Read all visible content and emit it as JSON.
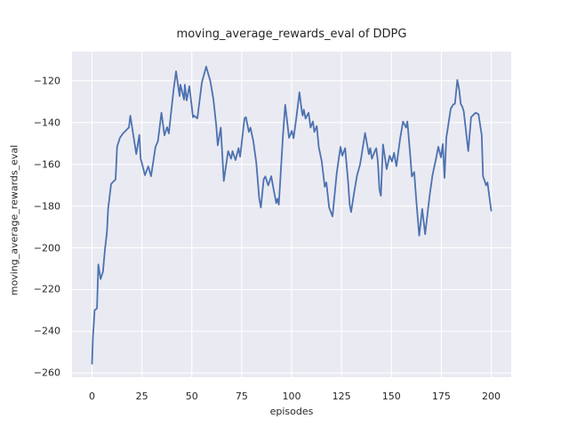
{
  "chart_data": {
    "type": "line",
    "title": "moving_average_rewards_eval of DDPG",
    "xlabel": "episodes",
    "ylabel": "moving_average_rewards_eval",
    "xlim": [
      -10,
      210
    ],
    "ylim": [
      -262,
      -106
    ],
    "xticks": [
      0,
      25,
      50,
      75,
      100,
      125,
      150,
      175,
      200
    ],
    "yticks": [
      -120,
      -140,
      -160,
      -180,
      -200,
      -220,
      -240,
      -260
    ],
    "grid": true,
    "legend": false,
    "style": {
      "figure_bg": "#FFFFFF",
      "axes_bg": "#EAEAF2",
      "grid_color": "#FFFFFF",
      "line_color": "#4C72B0",
      "text_color": "#262626",
      "line_width": 1.8,
      "grid_width": 1.1
    },
    "series": [
      {
        "name": "moving_average_rewards_eval",
        "color": "#4C72B0",
        "points": [
          [
            0,
            -255.5
          ],
          [
            0.5,
            -242
          ],
          [
            1,
            -235
          ],
          [
            1.3,
            -230
          ],
          [
            2.5,
            -229
          ],
          [
            3.2,
            -208
          ],
          [
            4.3,
            -215
          ],
          [
            5.5,
            -211.5
          ],
          [
            6.5,
            -201
          ],
          [
            7.5,
            -192.5
          ],
          [
            8.1,
            -181.4
          ],
          [
            9.6,
            -169.4
          ],
          [
            10.3,
            -168.7
          ],
          [
            11.8,
            -167.2
          ],
          [
            12.6,
            -151.6
          ],
          [
            14,
            -147.3
          ],
          [
            15.5,
            -145.2
          ],
          [
            17,
            -143.8
          ],
          [
            18.5,
            -142.3
          ],
          [
            19.2,
            -136.7
          ],
          [
            20.7,
            -145.9
          ],
          [
            22.2,
            -155.1
          ],
          [
            23.7,
            -145.9
          ],
          [
            24.4,
            -157.3
          ],
          [
            25.2,
            -160.1
          ],
          [
            26.5,
            -165.2
          ],
          [
            28.2,
            -161
          ],
          [
            29.6,
            -165.7
          ],
          [
            31.8,
            -151.6
          ],
          [
            33,
            -149
          ],
          [
            34.8,
            -135.3
          ],
          [
            36.3,
            -146.1
          ],
          [
            37.6,
            -142.2
          ],
          [
            38.5,
            -145.2
          ],
          [
            40.8,
            -124.8
          ],
          [
            42.1,
            -115.4
          ],
          [
            43.9,
            -127.3
          ],
          [
            44.3,
            -121.8
          ],
          [
            46.1,
            -129
          ],
          [
            46.5,
            -121.8
          ],
          [
            47.4,
            -129.4
          ],
          [
            48.8,
            -122.6
          ],
          [
            50.6,
            -137.5
          ],
          [
            51.1,
            -136.7
          ],
          [
            52.8,
            -138
          ],
          [
            55,
            -120.9
          ],
          [
            57.2,
            -113.2
          ],
          [
            59.3,
            -120.2
          ],
          [
            60.8,
            -128.7
          ],
          [
            62.3,
            -141.7
          ],
          [
            63,
            -150.9
          ],
          [
            64.5,
            -142.4
          ],
          [
            66,
            -168
          ],
          [
            68.2,
            -153.7
          ],
          [
            69.7,
            -157.3
          ],
          [
            70.4,
            -153.7
          ],
          [
            71.9,
            -158
          ],
          [
            73.4,
            -152.3
          ],
          [
            74.2,
            -156.4
          ],
          [
            76.4,
            -138
          ],
          [
            77.1,
            -137.4
          ],
          [
            78.6,
            -144.5
          ],
          [
            79.4,
            -142.4
          ],
          [
            80.8,
            -148.8
          ],
          [
            82.3,
            -159.4
          ],
          [
            83.8,
            -176.5
          ],
          [
            84.6,
            -180.7
          ],
          [
            86,
            -167.2
          ],
          [
            86.8,
            -165.8
          ],
          [
            88.3,
            -170.1
          ],
          [
            89.8,
            -165.7
          ],
          [
            91,
            -172.1
          ],
          [
            92.3,
            -178.6
          ],
          [
            92.9,
            -176.5
          ],
          [
            93.6,
            -179.3
          ],
          [
            95.7,
            -146
          ],
          [
            96.8,
            -131.5
          ],
          [
            98.7,
            -147.3
          ],
          [
            100.1,
            -144
          ],
          [
            101,
            -147.5
          ],
          [
            102.4,
            -137.4
          ],
          [
            103.9,
            -125.5
          ],
          [
            105.1,
            -134.6
          ],
          [
            105.5,
            -136.7
          ],
          [
            106.1,
            -133.8
          ],
          [
            107,
            -138.1
          ],
          [
            108.5,
            -135.3
          ],
          [
            109.5,
            -142.4
          ],
          [
            110.7,
            -139.5
          ],
          [
            111.4,
            -144.5
          ],
          [
            112.6,
            -141.7
          ],
          [
            113.6,
            -151.6
          ],
          [
            115.1,
            -158.7
          ],
          [
            116,
            -165.8
          ],
          [
            116.6,
            -170.8
          ],
          [
            117.4,
            -168.7
          ],
          [
            118.8,
            -180.7
          ],
          [
            120.5,
            -185
          ],
          [
            122.6,
            -164.4
          ],
          [
            123.5,
            -158
          ],
          [
            124.5,
            -151.6
          ],
          [
            125.4,
            -155.9
          ],
          [
            126.8,
            -152.3
          ],
          [
            128.3,
            -168
          ],
          [
            129.1,
            -179.3
          ],
          [
            129.8,
            -182.9
          ],
          [
            131.3,
            -173.6
          ],
          [
            132.8,
            -165.1
          ],
          [
            134.3,
            -160.1
          ],
          [
            135,
            -155.9
          ],
          [
            136.8,
            -145
          ],
          [
            138.7,
            -155.2
          ],
          [
            139.4,
            -152.3
          ],
          [
            140.2,
            -157.3
          ],
          [
            141.7,
            -153.7
          ],
          [
            142.4,
            -152.3
          ],
          [
            143.2,
            -158.7
          ],
          [
            144,
            -172.2
          ],
          [
            144.7,
            -175.1
          ],
          [
            145.8,
            -150.5
          ],
          [
            147.6,
            -162.3
          ],
          [
            149.1,
            -155.9
          ],
          [
            150.3,
            -158.7
          ],
          [
            151.3,
            -154.5
          ],
          [
            152.5,
            -160.9
          ],
          [
            154.3,
            -148.1
          ],
          [
            155.8,
            -139.5
          ],
          [
            157.3,
            -142.4
          ],
          [
            158,
            -139.5
          ],
          [
            159.5,
            -156.6
          ],
          [
            160.2,
            -165.8
          ],
          [
            161.4,
            -163.7
          ],
          [
            162.4,
            -176.5
          ],
          [
            163.9,
            -194.2
          ],
          [
            165.4,
            -181.4
          ],
          [
            166.9,
            -193.5
          ],
          [
            169.1,
            -175.1
          ],
          [
            170.6,
            -165.1
          ],
          [
            172.2,
            -158
          ],
          [
            173.5,
            -151.6
          ],
          [
            174.8,
            -156.7
          ],
          [
            175.7,
            -150.3
          ],
          [
            176.6,
            -166.5
          ],
          [
            177.5,
            -147.4
          ],
          [
            179.7,
            -133.3
          ],
          [
            181.1,
            -131.2
          ],
          [
            181.8,
            -131
          ],
          [
            183,
            -119.6
          ],
          [
            184,
            -124.6
          ],
          [
            184.7,
            -131
          ],
          [
            185.5,
            -132.4
          ],
          [
            186.2,
            -134.6
          ],
          [
            188.5,
            -153.7
          ],
          [
            189.9,
            -137.4
          ],
          [
            192.2,
            -135.3
          ],
          [
            193.6,
            -136
          ],
          [
            195.2,
            -146
          ],
          [
            195.9,
            -165.8
          ],
          [
            196.7,
            -167.9
          ],
          [
            197.4,
            -170.1
          ],
          [
            198.1,
            -168.7
          ],
          [
            198.9,
            -174.4
          ],
          [
            200,
            -182.2
          ]
        ]
      }
    ]
  }
}
